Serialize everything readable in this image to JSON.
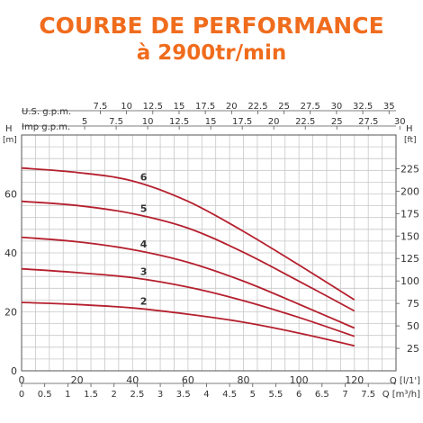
{
  "header": {
    "title": "COURBE DE PERFORMANCE",
    "subtitle": "à 2900tr/min"
  },
  "chart_data": {
    "type": "line",
    "colors": {
      "curve": "#b5202e",
      "grid": "#c8c8c8",
      "axis": "#555555",
      "title": "#f06c1d"
    },
    "grid": true,
    "x": {
      "label": "Q [l/1']",
      "range": [
        0,
        135
      ],
      "ticks": [
        0,
        20,
        40,
        60,
        80,
        100,
        120
      ]
    },
    "x_m3h": {
      "label": "Q [m³/h]",
      "ticks": [
        "0",
        "0.5",
        "1",
        "1.5",
        "2",
        "2.5",
        "3",
        "3.5",
        "4",
        "4.5",
        "5",
        "5.5",
        "6",
        "6.5",
        "7",
        "7.5"
      ],
      "l_per_min": [
        0,
        8.33,
        16.67,
        25,
        33.33,
        41.67,
        50,
        58.33,
        66.67,
        75,
        83.33,
        91.67,
        100,
        108.33,
        116.67,
        125
      ]
    },
    "x_usgpm": {
      "label": "U.S. g.p.m.",
      "ticks": [
        "7.5",
        "10",
        "12.5",
        "15",
        "17.5",
        "20",
        "22.5",
        "25",
        "27.5",
        "30",
        "32.5",
        "35"
      ],
      "l_per_min": [
        28.39,
        37.85,
        47.32,
        56.78,
        66.24,
        75.71,
        85.17,
        94.64,
        104.1,
        113.56,
        123.03,
        132.49
      ]
    },
    "x_impgpm": {
      "label": "Imp g.p.m.",
      "ticks": [
        "5",
        "7.5",
        "10",
        "12.5",
        "15",
        "17.5",
        "20",
        "22.5",
        "25",
        "27.5",
        "30"
      ],
      "l_per_min": [
        22.73,
        34.1,
        45.46,
        56.83,
        68.19,
        79.56,
        90.92,
        102.29,
        113.65,
        125.02,
        136.38
      ]
    },
    "y": {
      "label": "H",
      "unit": "[m]",
      "range": [
        0,
        80
      ],
      "ticks": [
        0,
        20,
        40,
        60
      ]
    },
    "y_ft": {
      "label": "H",
      "unit": "[ft]",
      "ticks": [
        25,
        50,
        75,
        100,
        125,
        150,
        175,
        200,
        225
      ],
      "m": [
        7.62,
        15.24,
        22.86,
        30.48,
        38.1,
        45.72,
        53.34,
        60.96,
        68.58
      ]
    },
    "series": [
      {
        "name": "2",
        "x": [
          0,
          20,
          40,
          60,
          80,
          100,
          120
        ],
        "y": [
          23.2,
          22.5,
          21.3,
          19.2,
          16.5,
          12.8,
          8.5
        ]
      },
      {
        "name": "3",
        "x": [
          0,
          20,
          40,
          60,
          80,
          100,
          120
        ],
        "y": [
          34.6,
          33.3,
          31.6,
          28.4,
          23.8,
          18.1,
          11.7
        ]
      },
      {
        "name": "4",
        "x": [
          0,
          20,
          40,
          60,
          80,
          100,
          120
        ],
        "y": [
          45.3,
          43.8,
          41.1,
          36.8,
          30.4,
          22.6,
          14.5
        ]
      },
      {
        "name": "5",
        "x": [
          0,
          20,
          40,
          60,
          80,
          100,
          120
        ],
        "y": [
          57.5,
          56.1,
          53.3,
          48.4,
          40.2,
          30.4,
          20.3
        ]
      },
      {
        "name": "6",
        "x": [
          0,
          20,
          40,
          60,
          80,
          100,
          120
        ],
        "y": [
          68.8,
          67.3,
          64.4,
          57.5,
          47.3,
          35.9,
          24.1
        ]
      }
    ]
  }
}
